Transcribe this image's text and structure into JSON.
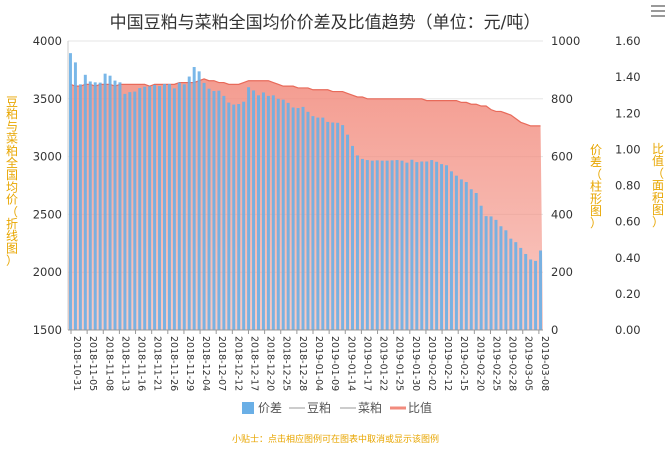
{
  "chart_data": {
    "type": "bar+area+line",
    "title": "中国豆粕与菜粕全国均价价差及比值趋势（单位：元/吨）",
    "ylabel_left": "豆粕与菜粕全国均价（折线图）",
    "ylabel_mid": "价差（柱形图）",
    "ylabel_right": "比值（面积图）",
    "yaxis_left": {
      "min": 1500,
      "max": 4000,
      "ticks": [
        "4000",
        "3500",
        "3000",
        "2500",
        "2000",
        "1500"
      ]
    },
    "yaxis_mid": {
      "min": 0,
      "max": 1000,
      "ticks": [
        "1000",
        "800",
        "600",
        "400",
        "200",
        "0"
      ]
    },
    "yaxis_right": {
      "min": 0,
      "max": 1.6,
      "ticks": [
        "1.60",
        "1.40",
        "1.20",
        "1.00",
        "0.80",
        "0.60",
        "0.40",
        "0.20",
        "0.00"
      ]
    },
    "x_tick_labels": [
      "2018-10-31",
      "2018-11-05",
      "2018-11-08",
      "2018-11-13",
      "2018-11-16",
      "2018-11-21",
      "2018-11-26",
      "2018-11-29",
      "2018-12-04",
      "2018-12-07",
      "2018-12-12",
      "2018-12-17",
      "2018-12-20",
      "2018-12-25",
      "2018-12-28",
      "2019-01-04",
      "2019-01-09",
      "2019-01-14",
      "2019-01-17",
      "2019-01-22",
      "2019-01-25",
      "2019-01-30",
      "2019-02-02",
      "2019-02-12",
      "2019-02-15",
      "2019-02-20",
      "2019-02-25",
      "2019-02-28",
      "2019-03-05",
      "2019-03-08"
    ],
    "series": [
      {
        "name": "价差",
        "type": "bar",
        "axis": "mid",
        "color": "#6aafe6",
        "values": [
          958,
          926,
          850,
          883,
          860,
          857,
          856,
          887,
          880,
          863,
          857,
          817,
          823,
          825,
          837,
          842,
          843,
          848,
          844,
          851,
          851,
          836,
          856,
          850,
          877,
          910,
          895,
          855,
          835,
          827,
          828,
          810,
          787,
          780,
          782,
          790,
          840,
          829,
          812,
          822,
          810,
          812,
          800,
          797,
          786,
          770,
          768,
          772,
          755,
          740,
          735,
          735,
          720,
          718,
          717,
          709,
          676,
          637,
          604,
          592,
          588,
          586,
          587,
          586,
          586,
          587,
          588,
          586,
          579,
          589,
          581,
          583,
          583,
          588,
          582,
          574,
          570,
          549,
          534,
          521,
          512,
          487,
          474,
          430,
          394,
          393,
          381,
          359,
          345,
          316,
          304,
          284,
          263,
          244,
          239,
          275
        ]
      },
      {
        "name": "豆粕",
        "type": "line",
        "axis": "left",
        "color": "#cccccc",
        "values": []
      },
      {
        "name": "菜粕",
        "type": "line",
        "axis": "left",
        "color": "#cccccc",
        "values": []
      },
      {
        "name": "比值",
        "type": "area",
        "axis": "right",
        "color": "#f28b7d",
        "values": [
          1.36,
          1.35,
          1.35,
          1.36,
          1.36,
          1.35,
          1.36,
          1.36,
          1.36,
          1.35,
          1.36,
          1.36,
          1.36,
          1.36,
          1.36,
          1.36,
          1.35,
          1.36,
          1.36,
          1.36,
          1.36,
          1.36,
          1.37,
          1.37,
          1.37,
          1.37,
          1.38,
          1.39,
          1.38,
          1.38,
          1.37,
          1.37,
          1.36,
          1.36,
          1.36,
          1.37,
          1.38,
          1.38,
          1.38,
          1.38,
          1.38,
          1.37,
          1.36,
          1.35,
          1.35,
          1.35,
          1.34,
          1.34,
          1.34,
          1.33,
          1.33,
          1.33,
          1.33,
          1.32,
          1.32,
          1.32,
          1.31,
          1.3,
          1.29,
          1.29,
          1.28,
          1.28,
          1.28,
          1.28,
          1.28,
          1.28,
          1.28,
          1.28,
          1.28,
          1.28,
          1.28,
          1.28,
          1.27,
          1.27,
          1.27,
          1.27,
          1.27,
          1.27,
          1.27,
          1.26,
          1.26,
          1.25,
          1.25,
          1.24,
          1.24,
          1.22,
          1.21,
          1.21,
          1.2,
          1.19,
          1.17,
          1.15,
          1.14,
          1.13,
          1.13,
          1.13
        ]
      }
    ],
    "legend": [
      "价差",
      "豆粕",
      "菜粕",
      "比值"
    ]
  },
  "tip": "小贴士：点击相应图例可在图表中取消或显示该图例",
  "menu_icon": "menu-icon"
}
